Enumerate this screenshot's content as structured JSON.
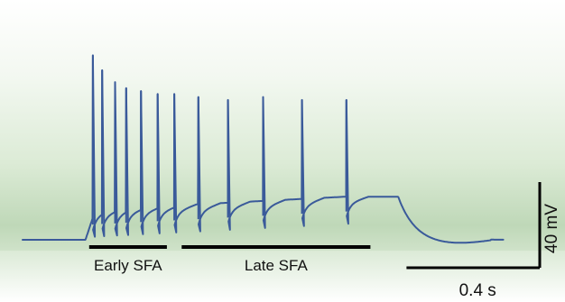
{
  "chart_data": {
    "type": "line",
    "title": "",
    "xlabel": "",
    "ylabel": "",
    "trace_color": "#3a5a9a",
    "background_gradient": [
      "#ffffff",
      "#bfd8b8"
    ],
    "x_unit": "s",
    "y_unit": "mV",
    "x_range_s": [
      0,
      2.6
    ],
    "baseline_mV": 0,
    "step_start_s": 0.34,
    "step_end_s": 2.03,
    "plateau_mV": [
      7.5,
      12
    ],
    "spike_times_s": [
      0.38,
      0.43,
      0.5,
      0.56,
      0.64,
      0.73,
      0.82,
      0.95,
      1.11,
      1.3,
      1.51,
      1.75
    ],
    "spike_peaks_mV": [
      62,
      57,
      53,
      51,
      50,
      49,
      49,
      48,
      47,
      48,
      47,
      47
    ],
    "segments": [
      {
        "label": "Early SFA",
        "start_s": 0.36,
        "end_s": 0.78
      },
      {
        "label": "Late SFA",
        "start_s": 0.86,
        "end_s": 1.88
      }
    ],
    "scale_bars": [
      {
        "label": "0.4 s",
        "value": 0.4,
        "unit": "s",
        "axis": "x"
      },
      {
        "label": "40 mV",
        "value": 40,
        "unit": "mV",
        "axis": "y"
      }
    ]
  }
}
